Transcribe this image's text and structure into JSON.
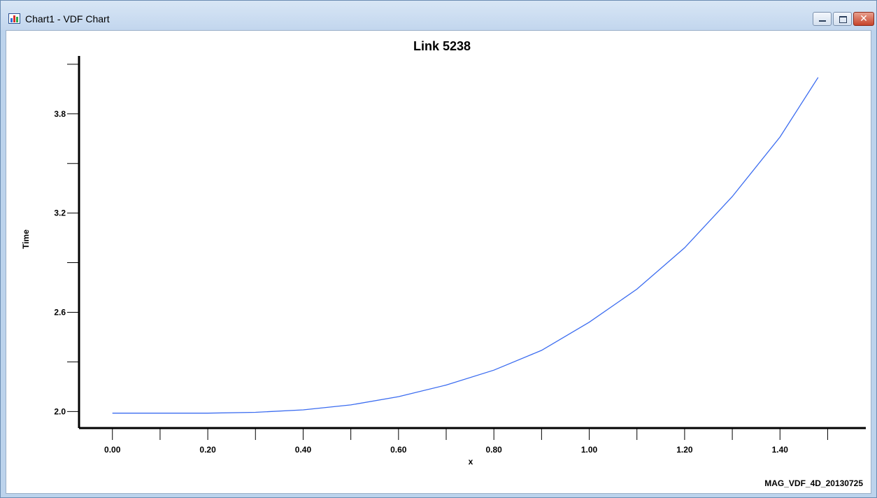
{
  "window": {
    "title": "Chart1 - VDF Chart",
    "icon": "bar-chart-icon",
    "controls": [
      "minimize",
      "maximize",
      "close"
    ]
  },
  "chart_data": {
    "type": "line",
    "title": "Link 5238",
    "xlabel": "x",
    "ylabel": "Time",
    "xlim": [
      -0.07,
      1.58
    ],
    "ylim": [
      1.9,
      4.15
    ],
    "x_ticks": [
      0.0,
      0.1,
      0.2,
      0.3,
      0.4,
      0.5,
      0.6,
      0.7,
      0.8,
      0.9,
      1.0,
      1.1,
      1.2,
      1.3,
      1.4,
      1.5
    ],
    "x_tick_labels": [
      {
        "value": 0.0,
        "label": "0.00"
      },
      {
        "value": 0.2,
        "label": "0.20"
      },
      {
        "value": 0.4,
        "label": "0.40"
      },
      {
        "value": 0.6,
        "label": "0.60"
      },
      {
        "value": 0.8,
        "label": "0.80"
      },
      {
        "value": 1.0,
        "label": "1.00"
      },
      {
        "value": 1.2,
        "label": "1.20"
      },
      {
        "value": 1.4,
        "label": "1.40"
      }
    ],
    "y_ticks": [
      2.0,
      2.3,
      2.6,
      2.9,
      3.2,
      3.5,
      3.8,
      4.1
    ],
    "y_tick_labels": [
      {
        "value": 2.0,
        "label": "2.0"
      },
      {
        "value": 2.6,
        "label": "2.6"
      },
      {
        "value": 3.2,
        "label": "3.2"
      },
      {
        "value": 3.8,
        "label": "3.8"
      }
    ],
    "grid": false,
    "series": [
      {
        "color": "#3b6cf0",
        "x": [
          0.0,
          0.1,
          0.2,
          0.3,
          0.4,
          0.5,
          0.6,
          0.7,
          0.8,
          0.9,
          1.0,
          1.1,
          1.2,
          1.3,
          1.4,
          1.48
        ],
        "y": [
          1.99,
          1.99,
          1.99,
          1.995,
          2.01,
          2.04,
          2.09,
          2.16,
          2.25,
          2.37,
          2.54,
          2.74,
          2.99,
          3.3,
          3.66,
          4.02
        ]
      }
    ],
    "annotation": "MAG_VDF_4D_20130725"
  }
}
